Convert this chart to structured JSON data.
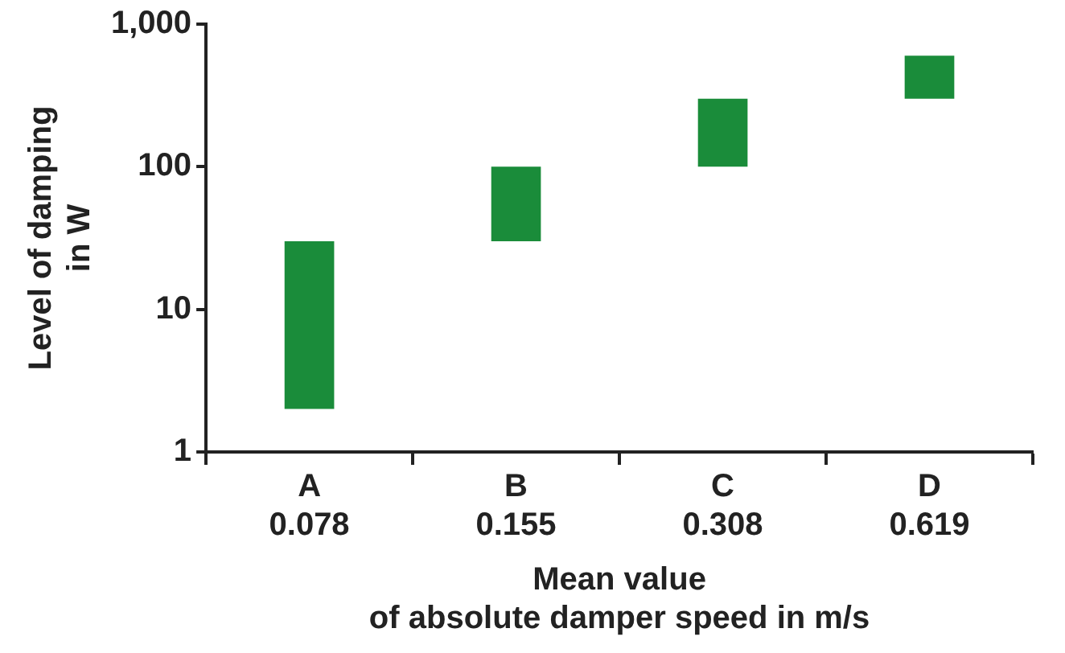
{
  "chart_data": {
    "type": "bar",
    "xlabel": "Mean value\nof absolute damper speed in m/s",
    "ylabel": "Level of damping\nin W",
    "categories": [
      "A\n0.078",
      "B\n0.155",
      "C\n0.308",
      "D\n0.619"
    ],
    "base": [
      2,
      30,
      100,
      300
    ],
    "values": [
      28,
      70,
      200,
      300
    ],
    "color": "#1a8c3a",
    "log": true,
    "ylim": [
      1,
      1000
    ],
    "yticks": [
      1,
      10,
      100,
      {
        "value": 1000,
        "label": "1,000"
      }
    ],
    "grid": false,
    "legend": false
  }
}
